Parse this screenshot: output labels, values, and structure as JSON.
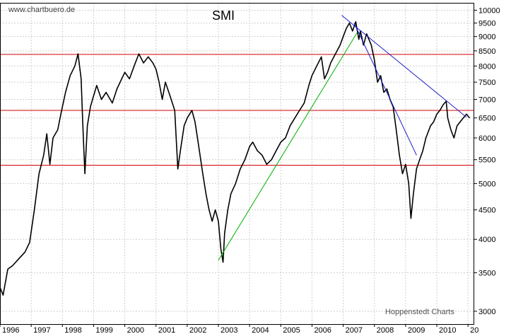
{
  "chart_data": {
    "type": "line",
    "title": "SMI",
    "watermark": "www.chartbuero.de",
    "credit": "Hoppenstedt Charts",
    "scale": "log",
    "ylim": [
      2850,
      10300
    ],
    "y_ticks": [
      3000,
      3500,
      4000,
      4500,
      5000,
      5500,
      6000,
      6500,
      7000,
      7500,
      8000,
      8500,
      9000,
      9500,
      10000
    ],
    "y_tick_labels": [
      "3000",
      "3500",
      "4000",
      "4500",
      "5000",
      "5500",
      "6000",
      "6500",
      "7000",
      "7500",
      "8000",
      "8500",
      "9000",
      "9500",
      "10000"
    ],
    "x_tick_labels": [
      "1996",
      "1997",
      "1998",
      "1999",
      "2000",
      "2001",
      "2002",
      "2003",
      "2004",
      "2005",
      "2006",
      "2007",
      "2008",
      "2009",
      "2010",
      "20"
    ],
    "xlim": [
      1996.0,
      2011.2
    ],
    "grid": true,
    "series": [
      {
        "color": "#000000",
        "points": [
          [
            1996.0,
            3300
          ],
          [
            1996.1,
            3200
          ],
          [
            1996.25,
            3550
          ],
          [
            1996.4,
            3600
          ],
          [
            1996.6,
            3700
          ],
          [
            1996.8,
            3800
          ],
          [
            1996.95,
            3950
          ],
          [
            1997.1,
            4500
          ],
          [
            1997.25,
            5200
          ],
          [
            1997.4,
            5600
          ],
          [
            1997.5,
            6100
          ],
          [
            1997.6,
            5400
          ],
          [
            1997.7,
            6000
          ],
          [
            1997.85,
            6200
          ],
          [
            1997.95,
            6600
          ],
          [
            1998.1,
            7200
          ],
          [
            1998.25,
            7700
          ],
          [
            1998.4,
            8000
          ],
          [
            1998.5,
            8400
          ],
          [
            1998.6,
            7600
          ],
          [
            1998.65,
            6400
          ],
          [
            1998.72,
            5200
          ],
          [
            1998.8,
            6300
          ],
          [
            1998.9,
            6800
          ],
          [
            1999.0,
            7100
          ],
          [
            1999.1,
            7400
          ],
          [
            1999.25,
            7000
          ],
          [
            1999.4,
            7200
          ],
          [
            1999.6,
            6900
          ],
          [
            1999.75,
            7300
          ],
          [
            1999.9,
            7600
          ],
          [
            2000.0,
            7800
          ],
          [
            2000.15,
            7600
          ],
          [
            2000.3,
            8000
          ],
          [
            2000.45,
            8400
          ],
          [
            2000.6,
            8100
          ],
          [
            2000.75,
            8300
          ],
          [
            2000.9,
            8100
          ],
          [
            2001.0,
            7900
          ],
          [
            2001.1,
            7500
          ],
          [
            2001.2,
            7000
          ],
          [
            2001.3,
            7500
          ],
          [
            2001.45,
            7100
          ],
          [
            2001.6,
            6700
          ],
          [
            2001.7,
            5300
          ],
          [
            2001.78,
            5700
          ],
          [
            2001.9,
            6300
          ],
          [
            2002.0,
            6500
          ],
          [
            2002.15,
            6700
          ],
          [
            2002.25,
            6400
          ],
          [
            2002.35,
            5900
          ],
          [
            2002.5,
            5200
          ],
          [
            2002.6,
            4800
          ],
          [
            2002.7,
            4500
          ],
          [
            2002.8,
            4300
          ],
          [
            2002.9,
            4500
          ],
          [
            2003.0,
            4300
          ],
          [
            2003.08,
            3850
          ],
          [
            2003.15,
            3650
          ],
          [
            2003.2,
            4100
          ],
          [
            2003.3,
            4500
          ],
          [
            2003.4,
            4800
          ],
          [
            2003.55,
            5000
          ],
          [
            2003.7,
            5300
          ],
          [
            2003.85,
            5500
          ],
          [
            2004.0,
            5800
          ],
          [
            2004.1,
            5900
          ],
          [
            2004.25,
            5700
          ],
          [
            2004.4,
            5600
          ],
          [
            2004.55,
            5400
          ],
          [
            2004.7,
            5500
          ],
          [
            2004.85,
            5700
          ],
          [
            2005.0,
            5900
          ],
          [
            2005.15,
            6000
          ],
          [
            2005.3,
            6300
          ],
          [
            2005.45,
            6500
          ],
          [
            2005.6,
            6700
          ],
          [
            2005.75,
            6900
          ],
          [
            2005.9,
            7400
          ],
          [
            2006.0,
            7700
          ],
          [
            2006.15,
            8000
          ],
          [
            2006.3,
            8300
          ],
          [
            2006.4,
            7600
          ],
          [
            2006.5,
            7800
          ],
          [
            2006.6,
            8100
          ],
          [
            2006.75,
            8400
          ],
          [
            2006.9,
            8700
          ],
          [
            2007.0,
            9000
          ],
          [
            2007.1,
            9300
          ],
          [
            2007.2,
            9500
          ],
          [
            2007.3,
            9200
          ],
          [
            2007.4,
            9550
          ],
          [
            2007.5,
            8900
          ],
          [
            2007.55,
            9200
          ],
          [
            2007.65,
            8700
          ],
          [
            2007.75,
            9100
          ],
          [
            2007.9,
            8700
          ],
          [
            2008.0,
            8200
          ],
          [
            2008.1,
            7500
          ],
          [
            2008.2,
            7700
          ],
          [
            2008.3,
            7200
          ],
          [
            2008.4,
            7300
          ],
          [
            2008.5,
            7000
          ],
          [
            2008.6,
            6800
          ],
          [
            2008.7,
            6200
          ],
          [
            2008.8,
            5600
          ],
          [
            2008.9,
            5200
          ],
          [
            2009.0,
            5400
          ],
          [
            2009.1,
            5000
          ],
          [
            2009.17,
            4350
          ],
          [
            2009.25,
            4800
          ],
          [
            2009.35,
            5300
          ],
          [
            2009.45,
            5500
          ],
          [
            2009.55,
            5700
          ],
          [
            2009.65,
            6000
          ],
          [
            2009.8,
            6300
          ],
          [
            2009.9,
            6400
          ],
          [
            2010.0,
            6600
          ],
          [
            2010.1,
            6700
          ],
          [
            2010.2,
            6850
          ],
          [
            2010.3,
            6950
          ],
          [
            2010.35,
            6500
          ],
          [
            2010.45,
            6200
          ],
          [
            2010.55,
            6000
          ],
          [
            2010.65,
            6300
          ],
          [
            2010.75,
            6400
          ],
          [
            2010.85,
            6500
          ],
          [
            2010.95,
            6600
          ],
          [
            2011.05,
            6500
          ]
        ]
      }
    ],
    "hlines": [
      {
        "y": 8380,
        "color": "#d40000"
      },
      {
        "y": 6700,
        "color": "#d40000"
      },
      {
        "y": 5380,
        "color": "#d40000"
      }
    ],
    "trendlines": [
      {
        "from": [
          2003.0,
          3680
        ],
        "to": [
          2007.45,
          9150
        ],
        "color": "#00b000"
      },
      {
        "from": [
          2006.95,
          9800
        ],
        "to": [
          2010.95,
          6520
        ],
        "color": "#1c1ccc"
      },
      {
        "from": [
          2007.35,
          9500
        ],
        "to": [
          2009.35,
          5600
        ],
        "color": "#1c1ccc"
      }
    ]
  }
}
